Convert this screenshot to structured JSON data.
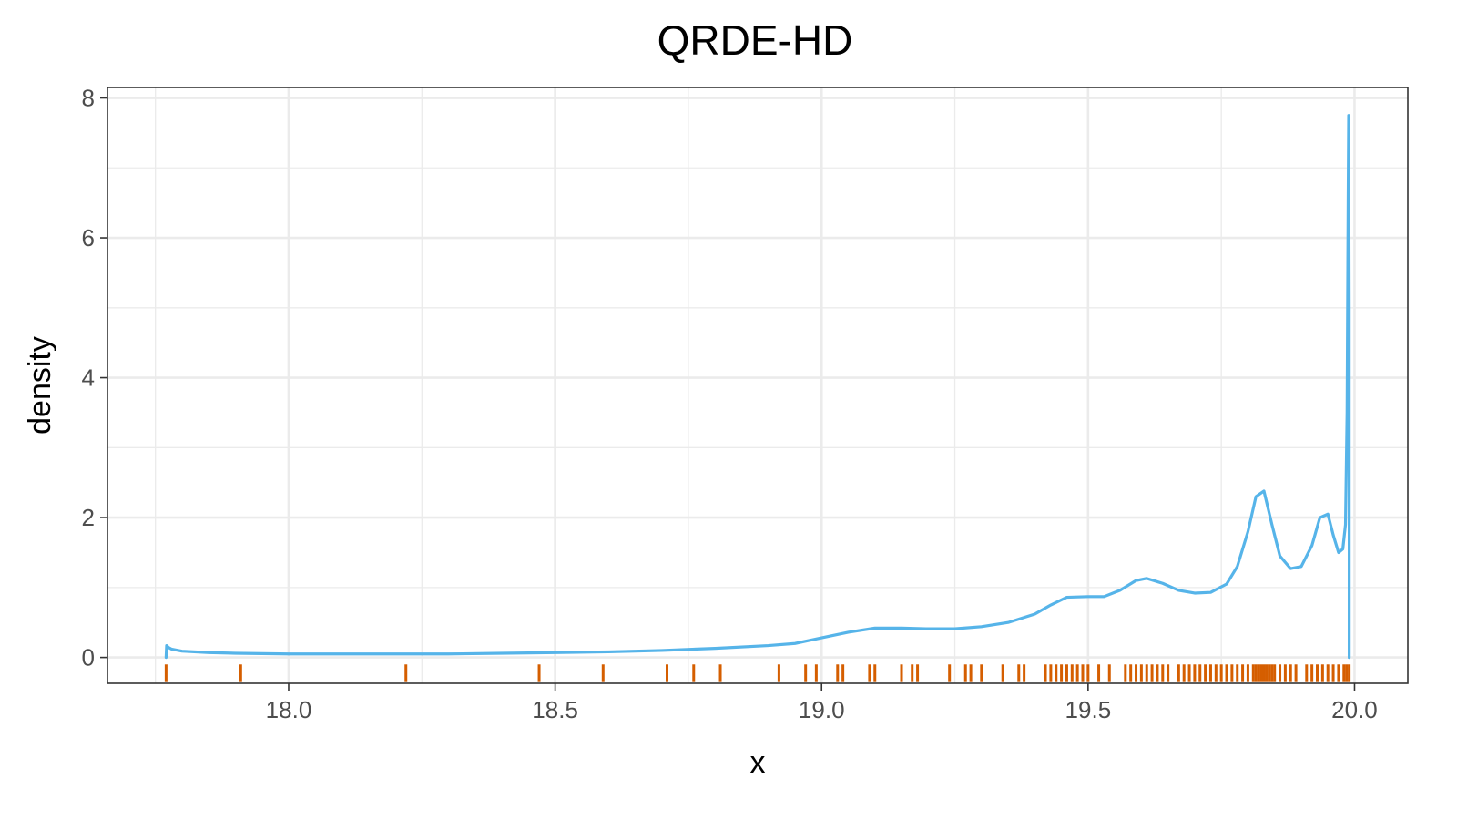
{
  "chart_data": {
    "type": "line",
    "title": "QRDE-HD",
    "xlabel": "x",
    "ylabel": "density",
    "xlim": [
      17.66,
      20.1
    ],
    "ylim": [
      -0.37,
      8.15
    ],
    "x_ticks": [
      18.0,
      18.5,
      19.0,
      19.5,
      20.0
    ],
    "x_tick_labels": [
      "18.0",
      "18.5",
      "19.0",
      "19.5",
      "20.0"
    ],
    "y_ticks": [
      0,
      2,
      4,
      6,
      8
    ],
    "y_tick_labels": [
      "0",
      "2",
      "4",
      "6",
      "8"
    ],
    "grid": true,
    "colors": {
      "density_line": "#56b4e9",
      "rug": "#d55e00"
    },
    "series": [
      {
        "style": "density-line",
        "x": [
          17.77,
          17.771,
          17.775,
          17.78,
          17.8,
          17.85,
          17.9,
          18.0,
          18.1,
          18.2,
          18.3,
          18.4,
          18.5,
          18.6,
          18.7,
          18.8,
          18.9,
          18.95,
          19.0,
          19.05,
          19.1,
          19.15,
          19.2,
          19.25,
          19.3,
          19.35,
          19.4,
          19.43,
          19.46,
          19.5,
          19.53,
          19.56,
          19.59,
          19.61,
          19.64,
          19.67,
          19.7,
          19.73,
          19.76,
          19.78,
          19.8,
          19.815,
          19.83,
          19.845,
          19.86,
          19.88,
          19.9,
          19.92,
          19.935,
          19.95,
          19.96,
          19.97,
          19.978,
          19.983,
          19.986,
          19.988,
          19.989,
          19.99,
          19.99
        ],
        "y": [
          0.0,
          0.17,
          0.14,
          0.12,
          0.09,
          0.07,
          0.06,
          0.05,
          0.05,
          0.05,
          0.05,
          0.06,
          0.07,
          0.08,
          0.1,
          0.13,
          0.17,
          0.2,
          0.28,
          0.36,
          0.42,
          0.42,
          0.41,
          0.41,
          0.44,
          0.5,
          0.62,
          0.75,
          0.86,
          0.87,
          0.87,
          0.96,
          1.1,
          1.13,
          1.06,
          0.96,
          0.92,
          0.93,
          1.05,
          1.3,
          1.8,
          2.3,
          2.38,
          1.9,
          1.45,
          1.27,
          1.3,
          1.6,
          2.0,
          2.05,
          1.75,
          1.5,
          1.55,
          1.9,
          3.5,
          6.5,
          7.75,
          5.0,
          0.0
        ]
      }
    ],
    "rug": [
      17.77,
      17.91,
      18.22,
      18.47,
      18.59,
      18.71,
      18.76,
      18.81,
      18.92,
      18.97,
      18.99,
      19.03,
      19.04,
      19.09,
      19.1,
      19.15,
      19.17,
      19.18,
      19.24,
      19.27,
      19.28,
      19.3,
      19.34,
      19.37,
      19.38,
      19.42,
      19.43,
      19.44,
      19.45,
      19.46,
      19.47,
      19.48,
      19.49,
      19.5,
      19.52,
      19.54,
      19.57,
      19.58,
      19.59,
      19.6,
      19.61,
      19.62,
      19.63,
      19.64,
      19.65,
      19.67,
      19.68,
      19.69,
      19.7,
      19.71,
      19.72,
      19.73,
      19.74,
      19.75,
      19.76,
      19.77,
      19.78,
      19.79,
      19.8,
      19.81,
      19.815,
      19.82,
      19.825,
      19.83,
      19.835,
      19.84,
      19.845,
      19.85,
      19.86,
      19.87,
      19.88,
      19.89,
      19.91,
      19.92,
      19.93,
      19.94,
      19.95,
      19.96,
      19.97,
      19.98,
      19.985,
      19.99
    ]
  }
}
